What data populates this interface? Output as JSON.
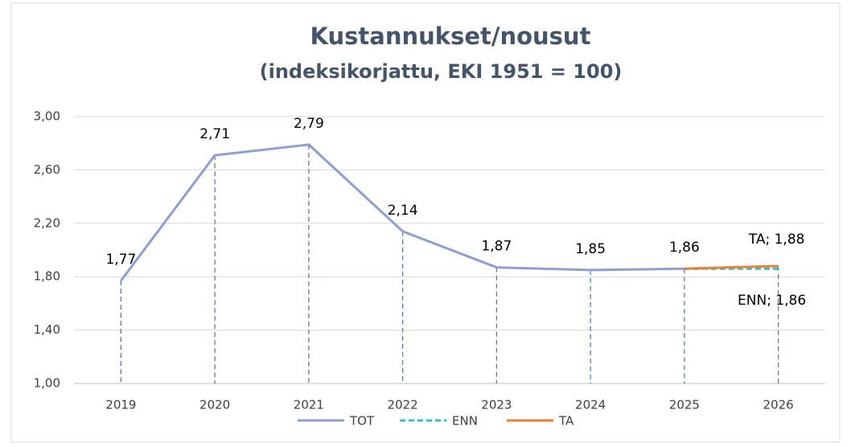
{
  "chart_data": {
    "type": "line",
    "title": "Kustannukset/nousut",
    "subtitle": "(indeksikorjattu, EKI 1951 = 100)",
    "categories": [
      "2019",
      "2020",
      "2021",
      "2022",
      "2023",
      "2024",
      "2025",
      "2026"
    ],
    "series": [
      {
        "name": "TOT",
        "color": "#8e9fd6",
        "dash": false,
        "values": [
          1.77,
          2.71,
          2.79,
          2.14,
          1.87,
          1.85,
          1.86,
          null
        ],
        "value_labels": [
          "1,77",
          "2,71",
          "2,79",
          "2,14",
          "1,87",
          "1,85",
          "1,86",
          null
        ]
      },
      {
        "name": "ENN",
        "color": "#2ec4c6",
        "dash": true,
        "values": [
          null,
          null,
          null,
          null,
          null,
          null,
          1.86,
          1.86
        ],
        "value_labels": [
          null,
          null,
          null,
          null,
          null,
          null,
          null,
          "ENN; 1,86"
        ]
      },
      {
        "name": "TA",
        "color": "#ed7d31",
        "dash": false,
        "values": [
          null,
          null,
          null,
          null,
          null,
          null,
          1.86,
          1.88
        ],
        "value_labels": [
          null,
          null,
          null,
          null,
          null,
          null,
          null,
          "TA; 1,88"
        ]
      }
    ],
    "ylim": [
      1,
      3
    ],
    "yticks": [
      {
        "value": 1,
        "label": "1,00"
      },
      {
        "value": 1.4,
        "label": "1,40"
      },
      {
        "value": 1.8,
        "label": "1,80"
      },
      {
        "value": 2.2,
        "label": "2,20"
      },
      {
        "value": 2.6,
        "label": "2,60"
      },
      {
        "value": 3,
        "label": "3,00"
      }
    ],
    "grid": true,
    "legend": "bottom"
  }
}
